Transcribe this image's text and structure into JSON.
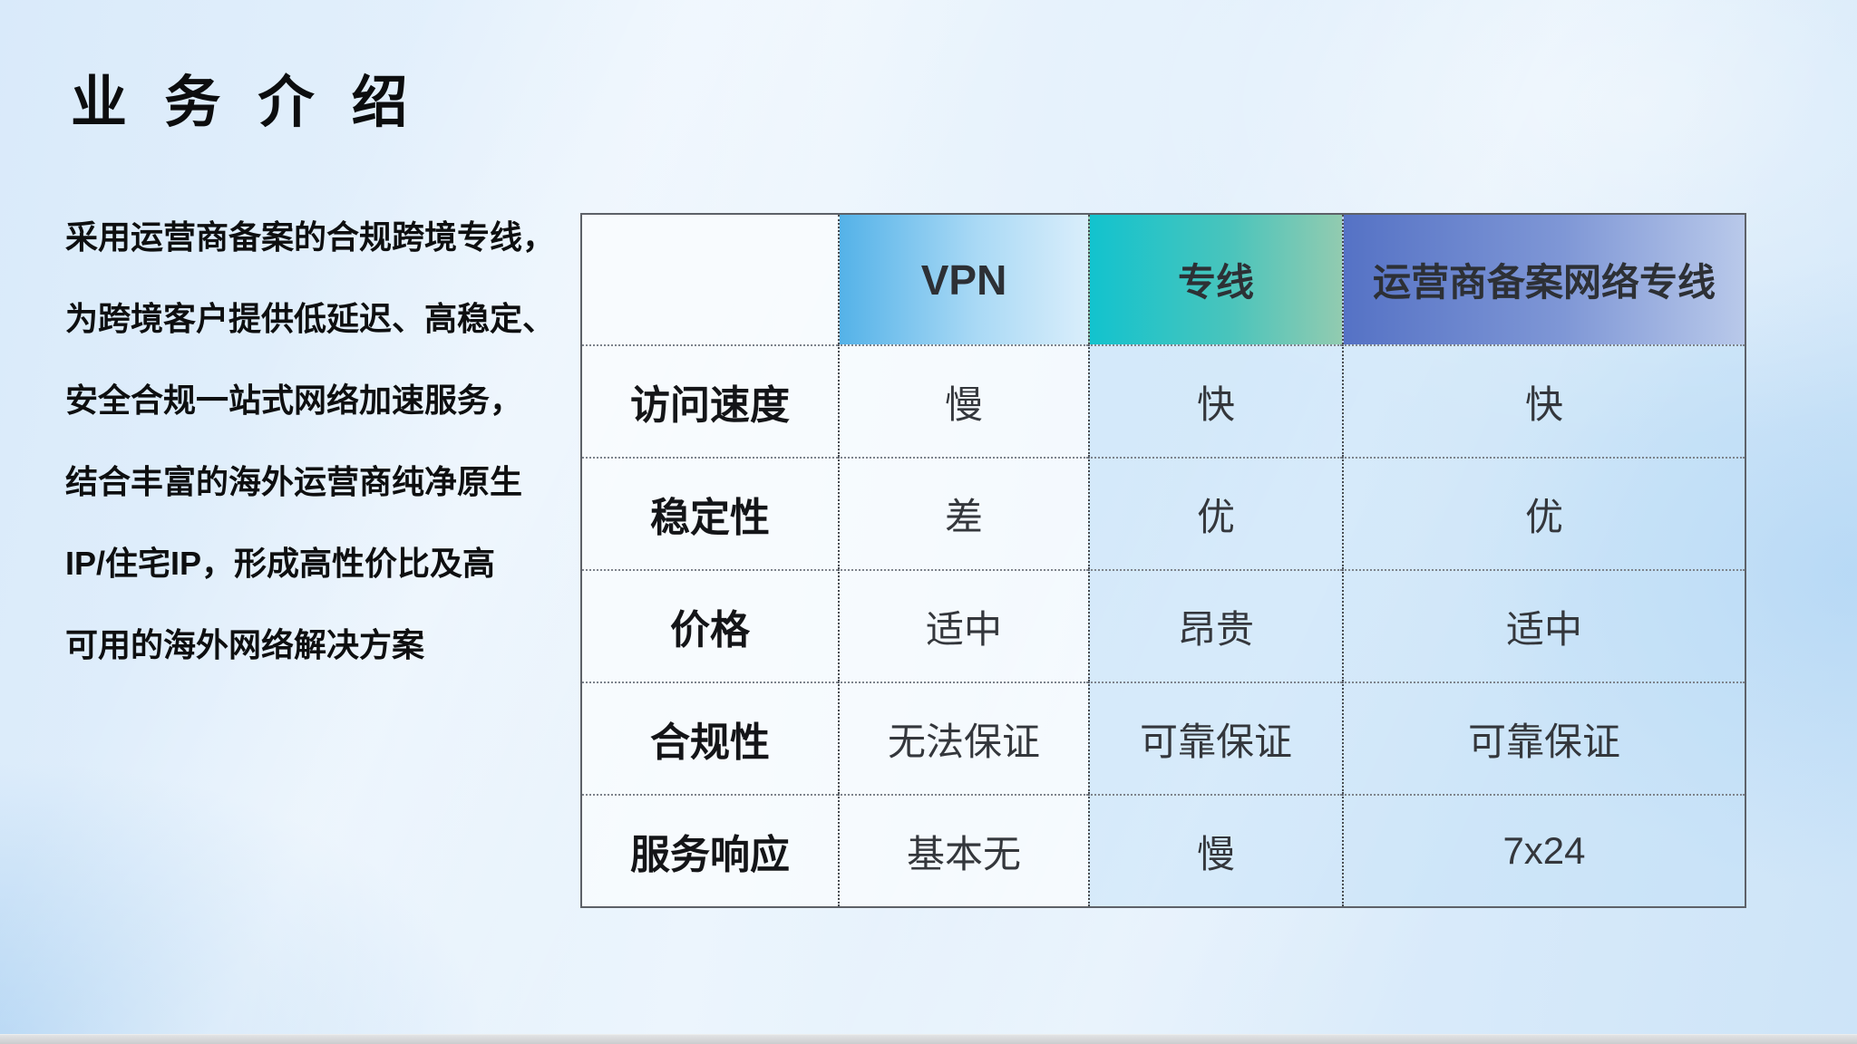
{
  "title": "业 务 介 绍",
  "description_lines": [
    "采用运营商备案的合规跨境专线，",
    "为跨境客户提供低延迟、高稳定、",
    "安全合规一站式网络加速服务，",
    "结合丰富的海外运营商纯净原生",
    "IP/住宅IP，形成高性价比及高",
    "可用的海外网络解决方案"
  ],
  "table": {
    "columns": [
      "",
      "VPN",
      "专线",
      "运营商备案网络专线"
    ],
    "rows": [
      {
        "label": "访问速度",
        "values": [
          "慢",
          "快",
          "快"
        ]
      },
      {
        "label": "稳定性",
        "values": [
          "差",
          "优",
          "优"
        ]
      },
      {
        "label": "价格",
        "values": [
          "适中",
          "昂贵",
          "适中"
        ]
      },
      {
        "label": "合规性",
        "values": [
          "无法保证",
          "可靠保证",
          "可靠保证"
        ]
      },
      {
        "label": "服务响应",
        "values": [
          "基本无",
          "慢",
          "7x24"
        ]
      }
    ],
    "header_colors": {
      "vpn_start": "#54b2e8",
      "vpn_end": "#daeefb",
      "dedicated_start": "#12c3ce",
      "dedicated_end": "#92cbb0",
      "carrier_start": "#5572c5",
      "carrier_end": "#b9c9ea"
    },
    "background_accent": "#cde4f8",
    "border_color": "#5d6168"
  }
}
